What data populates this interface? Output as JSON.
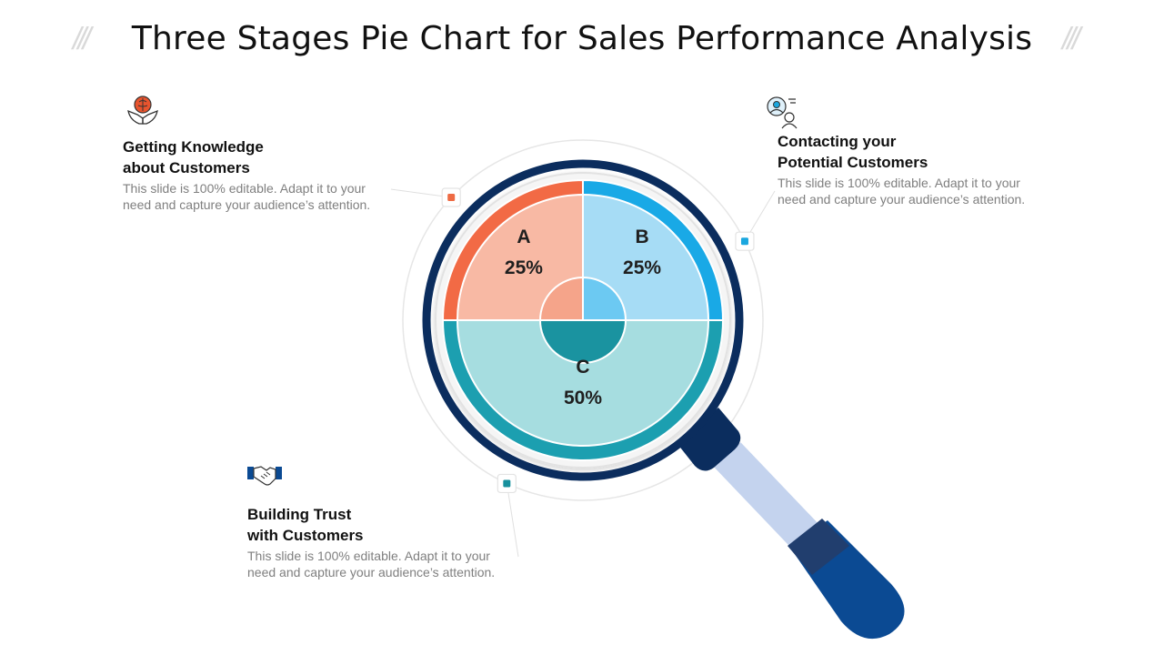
{
  "slide": {
    "title": "Three Stages Pie Chart for Sales Performance Analysis",
    "decor_mark": "///"
  },
  "blocks": [
    {
      "id": "A",
      "heading_line1": "Getting Knowledge",
      "heading_line2": "about Customers",
      "body_line1": "This slide is 100% editable. Adapt it to your",
      "body_line2": "need and capture your audience’s attention.",
      "icon": "brain-in-hands-icon"
    },
    {
      "id": "B",
      "heading_line1": "Contacting your",
      "heading_line2": "Potential Customers",
      "body_line1": "This slide is 100% editable. Adapt it to your",
      "body_line2": "need and capture your audience’s attention.",
      "icon": "customer-target-icon"
    },
    {
      "id": "C",
      "heading_line1": "Building Trust",
      "heading_line2": "with Customers",
      "body_line1": "This slide is 100% editable. Adapt it to your",
      "body_line2": "need and capture your audience’s attention.",
      "icon": "handshake-icon"
    }
  ],
  "chart_data": {
    "type": "pie",
    "title": "Three Stages Pie Chart for Sales Performance Analysis",
    "categories": [
      "A",
      "B",
      "C"
    ],
    "values": [
      25,
      25,
      50
    ],
    "value_labels": [
      "25%",
      "25%",
      "50%"
    ],
    "colors": {
      "A": {
        "outer": "#f26a45",
        "inner": "#f8b9a4",
        "center": "#f5a48a",
        "marker": "#ee6b44"
      },
      "B": {
        "outer": "#19a9e6",
        "inner": "#a6dcf5",
        "center": "#6cc9f2",
        "marker": "#1aa7df"
      },
      "C": {
        "outer": "#1c9fb0",
        "inner": "#a6dde0",
        "center": "#1a93a0",
        "marker": "#17909d"
      }
    },
    "lens_colors": {
      "rim": "#0b2d5e",
      "handle_neck": "#0b2d5e",
      "handle_shaft": "#c4d3ee",
      "handle_grip_top": "#213e6e",
      "handle_grip": "#0b4a93"
    }
  }
}
